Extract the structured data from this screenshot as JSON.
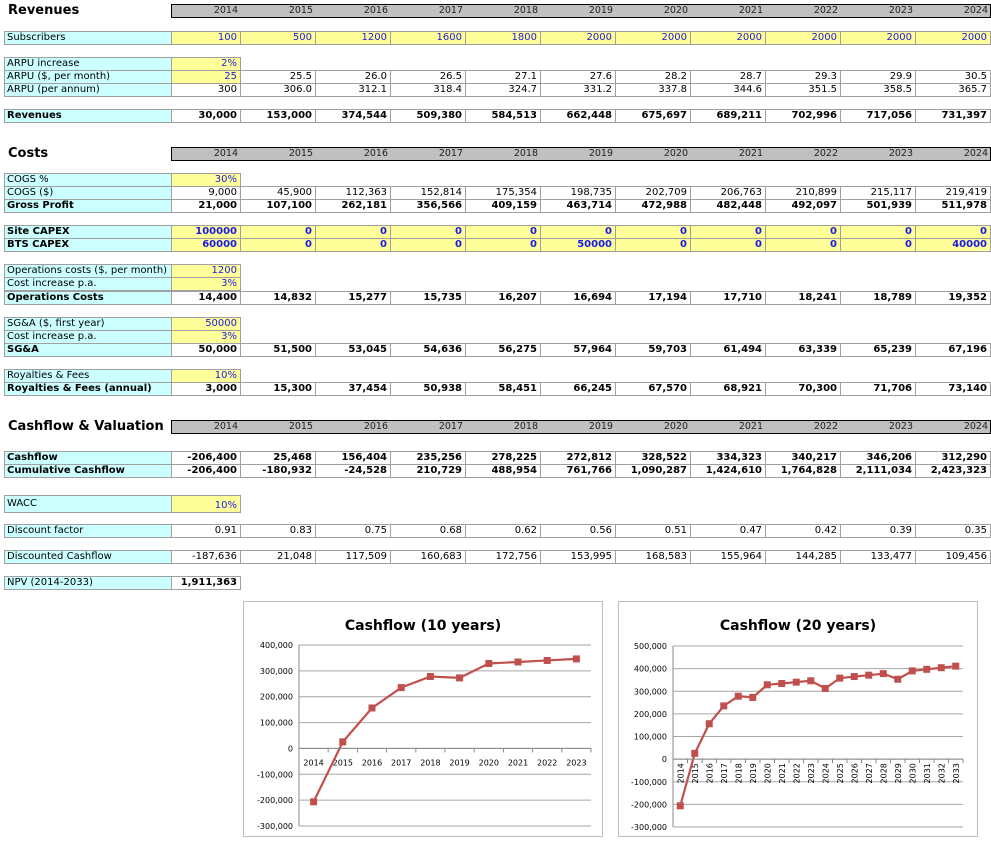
{
  "years": [
    "2014",
    "2015",
    "2016",
    "2017",
    "2018",
    "2019",
    "2020",
    "2021",
    "2022",
    "2023",
    "2024"
  ],
  "sections": [
    {
      "title": "Revenues",
      "rows": [
        {
          "label": "Subscribers",
          "bold": false,
          "inputs": 11,
          "values": [
            "100",
            "500",
            "1200",
            "1600",
            "1800",
            "2000",
            "2000",
            "2000",
            "2000",
            "2000",
            "2000"
          ]
        },
        {
          "label": "ARPU increase",
          "bold": false,
          "inputs": 1,
          "values": [
            "2%"
          ]
        },
        {
          "label": "ARPU ($, per month)",
          "bold": false,
          "inputs": 1,
          "values": [
            "25",
            "25.5",
            "26.0",
            "26.5",
            "27.1",
            "27.6",
            "28.2",
            "28.7",
            "29.3",
            "29.9",
            "30.5"
          ]
        },
        {
          "label": "ARPU (per annum)",
          "bold": false,
          "inputs": 0,
          "values": [
            "300",
            "306.0",
            "312.1",
            "318.4",
            "324.7",
            "331.2",
            "337.8",
            "344.6",
            "351.5",
            "358.5",
            "365.7"
          ]
        },
        {
          "label": "Revenues",
          "bold": true,
          "inputs": 0,
          "values": [
            "30,000",
            "153,000",
            "374,544",
            "509,380",
            "584,513",
            "662,448",
            "675,697",
            "689,211",
            "702,996",
            "717,056",
            "731,397"
          ]
        }
      ]
    },
    {
      "title": "Costs",
      "rows": [
        {
          "label": "COGS %",
          "bold": false,
          "inputs": 1,
          "values": [
            "30%"
          ]
        },
        {
          "label": "COGS ($)",
          "bold": false,
          "inputs": 0,
          "values": [
            "9,000",
            "45,900",
            "112,363",
            "152,814",
            "175,354",
            "198,735",
            "202,709",
            "206,763",
            "210,899",
            "215,117",
            "219,419"
          ]
        },
        {
          "label": "Gross Profit",
          "bold": true,
          "inputs": 0,
          "values": [
            "21,000",
            "107,100",
            "262,181",
            "356,566",
            "409,159",
            "463,714",
            "472,988",
            "482,448",
            "492,097",
            "501,939",
            "511,978"
          ]
        },
        {
          "label": "Site CAPEX",
          "bold": true,
          "inputs": 11,
          "values": [
            "100000",
            "0",
            "0",
            "0",
            "0",
            "0",
            "0",
            "0",
            "0",
            "0",
            "0"
          ]
        },
        {
          "label": "BTS CAPEX",
          "bold": true,
          "inputs": 11,
          "values": [
            "60000",
            "0",
            "0",
            "0",
            "0",
            "50000",
            "0",
            "0",
            "0",
            "0",
            "40000"
          ]
        },
        {
          "label": "Operations costs ($, per month)",
          "bold": false,
          "inputs": 1,
          "values": [
            "1200"
          ]
        },
        {
          "label": "Cost increase p.a.",
          "bold": false,
          "inputs": 1,
          "values": [
            "3%"
          ]
        },
        {
          "label": "Operations Costs",
          "bold": true,
          "inputs": 0,
          "values": [
            "14,400",
            "14,832",
            "15,277",
            "15,735",
            "16,207",
            "16,694",
            "17,194",
            "17,710",
            "18,241",
            "18,789",
            "19,352"
          ]
        },
        {
          "label": "SG&A ($, first year)",
          "bold": false,
          "inputs": 1,
          "values": [
            "50000"
          ]
        },
        {
          "label": "Cost increase p.a.",
          "bold": false,
          "inputs": 1,
          "values": [
            "3%"
          ]
        },
        {
          "label": "SG&A",
          "bold": true,
          "inputs": 0,
          "values": [
            "50,000",
            "51,500",
            "53,045",
            "54,636",
            "56,275",
            "57,964",
            "59,703",
            "61,494",
            "63,339",
            "65,239",
            "67,196"
          ]
        },
        {
          "label": "Royalties & Fees",
          "bold": false,
          "inputs": 1,
          "values": [
            "10%"
          ]
        },
        {
          "label": "Royalties & Fees (annual)",
          "bold": true,
          "inputs": 0,
          "values": [
            "3,000",
            "15,300",
            "37,454",
            "50,938",
            "58,451",
            "66,245",
            "67,570",
            "68,921",
            "70,300",
            "71,706",
            "73,140"
          ]
        }
      ]
    },
    {
      "title": "Cashflow &  Valuation",
      "rows": [
        {
          "label": "Cashflow",
          "bold": true,
          "inputs": 0,
          "values": [
            "-206,400",
            "25,468",
            "156,404",
            "235,256",
            "278,225",
            "272,812",
            "328,522",
            "334,323",
            "340,217",
            "346,206",
            "312,290"
          ]
        },
        {
          "label": "Cumulative Cashflow",
          "bold": true,
          "inputs": 0,
          "values": [
            "-206,400",
            "-180,932",
            "-24,528",
            "210,729",
            "488,954",
            "761,766",
            "1,090,287",
            "1,424,610",
            "1,764,828",
            "2,111,034",
            "2,423,323"
          ]
        },
        {
          "label": "WACC",
          "bold": false,
          "inputs": 1,
          "values": [
            "10%"
          ]
        },
        {
          "label": "Discount factor",
          "bold": false,
          "inputs": 0,
          "values": [
            "0.91",
            "0.83",
            "0.75",
            "0.68",
            "0.62",
            "0.56",
            "0.51",
            "0.47",
            "0.42",
            "0.39",
            "0.35"
          ]
        },
        {
          "label": "Discounted Cashflow",
          "bold": false,
          "inputs": 0,
          "values": [
            "-187,636",
            "21,048",
            "117,509",
            "160,683",
            "172,756",
            "153,995",
            "168,583",
            "155,964",
            "144,285",
            "133,477",
            "109,456"
          ]
        },
        {
          "label": "NPV (2014-2033)",
          "bold": false,
          "inputs": 0,
          "valueBold": true,
          "values": [
            "1,911,363"
          ]
        }
      ]
    }
  ],
  "chart_data": [
    {
      "type": "line",
      "title": "Cashflow (10 years)",
      "categories": [
        "2014",
        "2015",
        "2016",
        "2017",
        "2018",
        "2019",
        "2020",
        "2021",
        "2022",
        "2023"
      ],
      "series": [
        {
          "name": "Cashflow",
          "values": [
            -206400,
            25468,
            156404,
            235256,
            278225,
            272812,
            328522,
            334323,
            340217,
            346206
          ]
        }
      ],
      "ylim": [
        -300000,
        400000
      ],
      "yticks": [
        "400,000",
        "300,000",
        "200,000",
        "100,000",
        "0",
        "-100,000",
        "-200,000",
        "-300,000"
      ],
      "grid": true,
      "color": "#c0504d"
    },
    {
      "type": "line",
      "title": "Cashflow (20 years)",
      "categories": [
        "2014",
        "2015",
        "2016",
        "2017",
        "2018",
        "2019",
        "2020",
        "2021",
        "2022",
        "2023",
        "2024",
        "2025",
        "2026",
        "2027",
        "2028",
        "2029",
        "2030",
        "2031",
        "2032",
        "2033"
      ],
      "series": [
        {
          "name": "Cashflow",
          "values": [
            -206400,
            25468,
            156404,
            235256,
            278225,
            272812,
            328522,
            334323,
            340217,
            346206,
            312290,
            358000,
            365000,
            371000,
            378000,
            353000,
            390000,
            397000,
            404000,
            411000
          ]
        }
      ],
      "ylim": [
        -300000,
        500000
      ],
      "yticks": [
        "500,000",
        "400,000",
        "300,000",
        "200,000",
        "100,000",
        "0",
        "-100,000",
        "-200,000",
        "-300,000"
      ],
      "grid": true,
      "color": "#c0504d"
    }
  ]
}
